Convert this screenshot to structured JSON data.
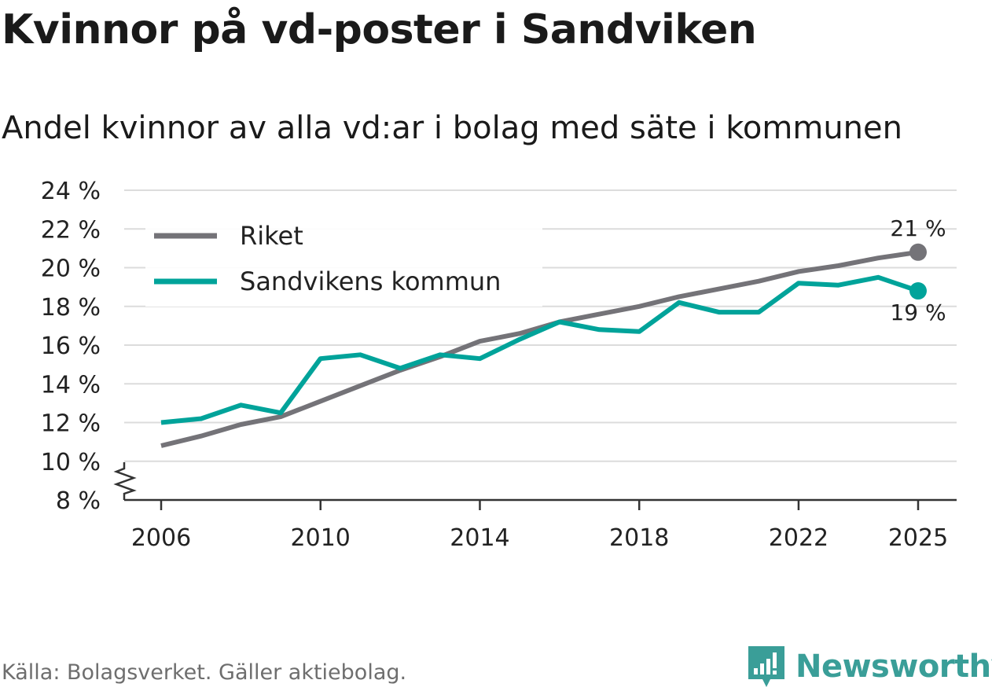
{
  "title": "Kvinnor på vd-poster i Sandviken",
  "subtitle": "Andel kvinnor av alla vd:ar i bolag med säte i kommunen",
  "source": "Källa: Bolagsverket. Gäller aktiebolag.",
  "brand": "Newsworthy",
  "colors": {
    "riket": "#747378",
    "sandviken": "#00a39a",
    "grid": "#dcdcdc",
    "axis": "#333333"
  },
  "chart_data": {
    "type": "line",
    "title": "Kvinnor på vd-poster i Sandviken",
    "ylabel": "",
    "xlabel": "",
    "ylim": [
      8,
      24
    ],
    "xlim": [
      2006,
      2025
    ],
    "yticks": [
      8,
      10,
      12,
      14,
      16,
      18,
      20,
      22,
      24
    ],
    "ytick_labels": [
      "8 %",
      "10 %",
      "12 %",
      "14 %",
      "16 %",
      "18 %",
      "20 %",
      "22 %",
      "24 %"
    ],
    "xticks": [
      2006,
      2010,
      2014,
      2018,
      2022,
      2025
    ],
    "xtick_labels": [
      "2006",
      "2010",
      "2014",
      "2018",
      "2022",
      "2025"
    ],
    "legend_position": "top-left",
    "series": [
      {
        "name": "Riket",
        "key": "riket",
        "x": [
          2006,
          2007,
          2008,
          2009,
          2010,
          2011,
          2012,
          2013,
          2014,
          2015,
          2016,
          2017,
          2018,
          2019,
          2020,
          2021,
          2022,
          2023,
          2024,
          2025
        ],
        "values": [
          10.8,
          11.3,
          11.9,
          12.3,
          13.1,
          13.9,
          14.7,
          15.4,
          16.2,
          16.6,
          17.2,
          17.6,
          18.0,
          18.5,
          18.9,
          19.3,
          19.8,
          20.1,
          20.5,
          20.8
        ],
        "end_label": "21 %"
      },
      {
        "name": "Sandvikens kommun",
        "key": "sandviken",
        "x": [
          2006,
          2007,
          2008,
          2009,
          2010,
          2011,
          2012,
          2013,
          2014,
          2015,
          2016,
          2017,
          2018,
          2019,
          2020,
          2021,
          2022,
          2023,
          2024,
          2025
        ],
        "values": [
          12.0,
          12.2,
          12.9,
          12.5,
          15.3,
          15.5,
          14.8,
          15.5,
          15.3,
          16.3,
          17.2,
          16.8,
          16.7,
          18.2,
          17.7,
          17.7,
          19.2,
          19.1,
          19.5,
          18.8
        ],
        "end_label": "19 %"
      }
    ]
  }
}
